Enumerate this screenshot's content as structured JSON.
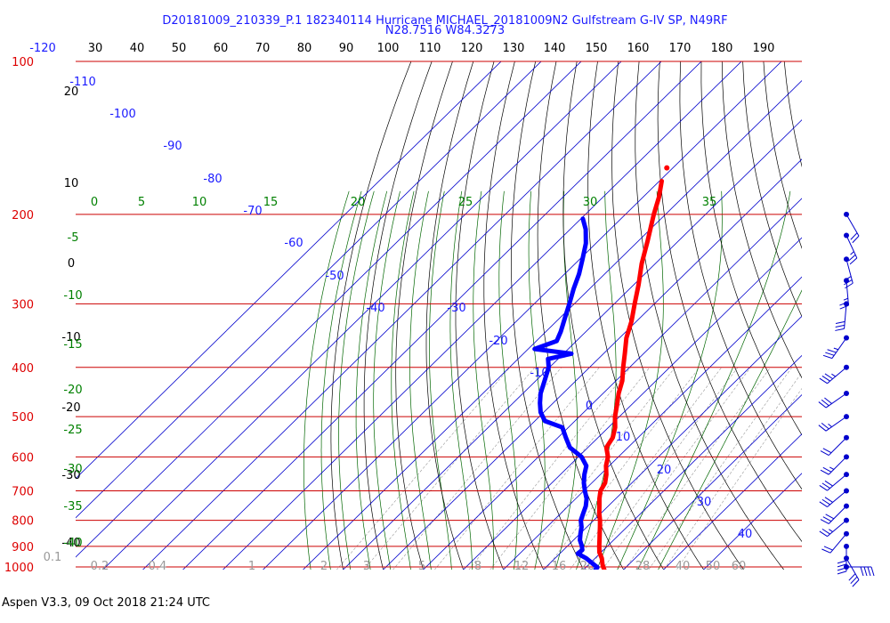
{
  "header": {
    "title_line1": "D20181009_210339_P.1 182340114 Hurricane MICHAEL_20181009N2 Gulfstream G-IV SP, N49RF",
    "title_line2": "N28.7516 W84.3273"
  },
  "footer": {
    "software": "Aspen V3.3, 09 Oct 2018  21:24 UTC"
  },
  "chart_data": {
    "type": "skew-t log-p",
    "colors": {
      "temperature": "#ff0000",
      "dewpoint": "#0000ff",
      "isobar": "#cc0000",
      "isotherm": "#0000cc",
      "dry_adiabat": "#000000",
      "moist_adiabat": "#006600",
      "mixing_ratio": "#999999",
      "wind_barb": "#0000cc",
      "grid_text_gray": "#999999"
    },
    "pressure_axis": {
      "unit": "mb",
      "levels": [
        100,
        200,
        300,
        400,
        500,
        600,
        700,
        800,
        900,
        1000
      ],
      "labels": [
        "100",
        "200",
        "300",
        "400",
        "500",
        "600",
        "700",
        "800",
        "900",
        "1000"
      ]
    },
    "top_temperature_labels": [
      "-120",
      "30",
      "40",
      "50",
      "60",
      "70",
      "80",
      "90",
      "100",
      "110",
      "120",
      "130",
      "140",
      "150",
      "160",
      "170",
      "180",
      "190"
    ],
    "isotherm_labels": [
      "-110",
      "-100",
      "-90",
      "-80",
      "-70",
      "-60",
      "-50",
      "-40",
      "-30",
      "-20",
      "-10",
      "0",
      "10",
      "20",
      "30",
      "40"
    ],
    "dry_adiabat_labels": [
      "20",
      "10",
      "0",
      "-10",
      "-20",
      "-30",
      "-40"
    ],
    "moist_adiabat_labels": {
      "top": [
        "0",
        "5",
        "10",
        "15",
        "20",
        "25",
        "30",
        "35"
      ],
      "left": [
        "-5",
        "-10",
        "-15",
        "-20",
        "-25",
        "-30",
        "-35",
        "-40"
      ]
    },
    "mixing_ratio_labels": [
      "0.1",
      "0.2",
      "0.4",
      "1",
      "2",
      "3",
      "5",
      "8",
      "12",
      "16",
      "20",
      "28",
      "40",
      "50",
      "60"
    ],
    "temperature_profile": [
      {
        "p": 1000,
        "t": 25.2
      },
      {
        "p": 990,
        "t": 24.4
      },
      {
        "p": 975,
        "t": 23.3
      },
      {
        "p": 950,
        "t": 21.7
      },
      {
        "p": 925,
        "t": 19.6
      },
      {
        "p": 900,
        "t": 18.0
      },
      {
        "p": 875,
        "t": 16.5
      },
      {
        "p": 850,
        "t": 14.9
      },
      {
        "p": 825,
        "t": 13.3
      },
      {
        "p": 800,
        "t": 11.6
      },
      {
        "p": 775,
        "t": 9.6
      },
      {
        "p": 750,
        "t": 7.8
      },
      {
        "p": 725,
        "t": 5.9
      },
      {
        "p": 700,
        "t": 4.2
      },
      {
        "p": 675,
        "t": 3.3
      },
      {
        "p": 650,
        "t": 1.5
      },
      {
        "p": 625,
        "t": -0.8
      },
      {
        "p": 600,
        "t": -2.6
      },
      {
        "p": 575,
        "t": -5.4
      },
      {
        "p": 550,
        "t": -6.3
      },
      {
        "p": 525,
        "t": -8.3
      },
      {
        "p": 500,
        "t": -11.1
      },
      {
        "p": 475,
        "t": -13.5
      },
      {
        "p": 450,
        "t": -16.1
      },
      {
        "p": 425,
        "t": -18.4
      },
      {
        "p": 400,
        "t": -21.6
      },
      {
        "p": 375,
        "t": -24.8
      },
      {
        "p": 350,
        "t": -28.3
      },
      {
        "p": 325,
        "t": -31.2
      },
      {
        "p": 300,
        "t": -34.9
      },
      {
        "p": 275,
        "t": -38.8
      },
      {
        "p": 250,
        "t": -43.4
      },
      {
        "p": 225,
        "t": -47.8
      },
      {
        "p": 200,
        "t": -52.9
      },
      {
        "p": 185,
        "t": -56.0
      },
      {
        "p": 172,
        "t": -59.4
      }
    ],
    "dewpoint_profile": [
      {
        "p": 1000,
        "td": 23.0
      },
      {
        "p": 990,
        "td": 22.9
      },
      {
        "p": 975,
        "td": 21.0
      },
      {
        "p": 950,
        "td": 17.8
      },
      {
        "p": 930,
        "td": 14.5
      },
      {
        "p": 915,
        "td": 14.7
      },
      {
        "p": 900,
        "td": 13.7
      },
      {
        "p": 875,
        "td": 11.6
      },
      {
        "p": 850,
        "td": 10.1
      },
      {
        "p": 825,
        "td": 8.7
      },
      {
        "p": 800,
        "td": 6.8
      },
      {
        "p": 775,
        "td": 5.6
      },
      {
        "p": 750,
        "td": 4.4
      },
      {
        "p": 725,
        "td": 2.7
      },
      {
        "p": 700,
        "td": 0.3
      },
      {
        "p": 675,
        "td": -2.0
      },
      {
        "p": 650,
        "td": -4.0
      },
      {
        "p": 625,
        "td": -5.7
      },
      {
        "p": 600,
        "td": -9.2
      },
      {
        "p": 575,
        "td": -14.5
      },
      {
        "p": 550,
        "td": -18.0
      },
      {
        "p": 525,
        "td": -21.5
      },
      {
        "p": 510,
        "td": -27.5
      },
      {
        "p": 490,
        "td": -30.8
      },
      {
        "p": 470,
        "td": -33.3
      },
      {
        "p": 450,
        "td": -35.6
      },
      {
        "p": 425,
        "td": -37.8
      },
      {
        "p": 400,
        "td": -40.2
      },
      {
        "p": 385,
        "td": -42.5
      },
      {
        "p": 376,
        "td": -38.0
      },
      {
        "p": 368,
        "td": -48.4
      },
      {
        "p": 355,
        "td": -44.9
      },
      {
        "p": 340,
        "td": -46.3
      },
      {
        "p": 320,
        "td": -48.7
      },
      {
        "p": 300,
        "td": -51.2
      },
      {
        "p": 280,
        "td": -54.0
      },
      {
        "p": 262,
        "td": -56.4
      },
      {
        "p": 245,
        "td": -59.3
      },
      {
        "p": 228,
        "td": -62.5
      },
      {
        "p": 214,
        "td": -66.1
      },
      {
        "p": 204,
        "td": -69.5
      }
    ],
    "wind_barbs": [
      {
        "p": 1000,
        "speed_kt": 40,
        "dir": 90
      },
      {
        "p": 950,
        "speed_kt": 30,
        "dir": 150
      },
      {
        "p": 900,
        "speed_kt": 40,
        "dir": 180
      },
      {
        "p": 850,
        "speed_kt": 20,
        "dir": 220
      },
      {
        "p": 800,
        "speed_kt": 25,
        "dir": 230
      },
      {
        "p": 750,
        "speed_kt": 30,
        "dir": 225
      },
      {
        "p": 700,
        "speed_kt": 30,
        "dir": 230
      },
      {
        "p": 650,
        "speed_kt": 30,
        "dir": 230
      },
      {
        "p": 600,
        "speed_kt": 25,
        "dir": 225
      },
      {
        "p": 550,
        "speed_kt": 20,
        "dir": 225
      },
      {
        "p": 500,
        "speed_kt": 25,
        "dir": 235
      },
      {
        "p": 450,
        "speed_kt": 30,
        "dir": 235
      },
      {
        "p": 400,
        "speed_kt": 35,
        "dir": 230
      },
      {
        "p": 350,
        "speed_kt": 35,
        "dir": 215
      },
      {
        "p": 300,
        "speed_kt": 30,
        "dir": 185
      },
      {
        "p": 270,
        "speed_kt": 25,
        "dir": 175
      },
      {
        "p": 245,
        "speed_kt": 25,
        "dir": 165
      },
      {
        "p": 220,
        "speed_kt": 25,
        "dir": 155
      },
      {
        "p": 200,
        "speed_kt": 20,
        "dir": 150
      }
    ]
  }
}
